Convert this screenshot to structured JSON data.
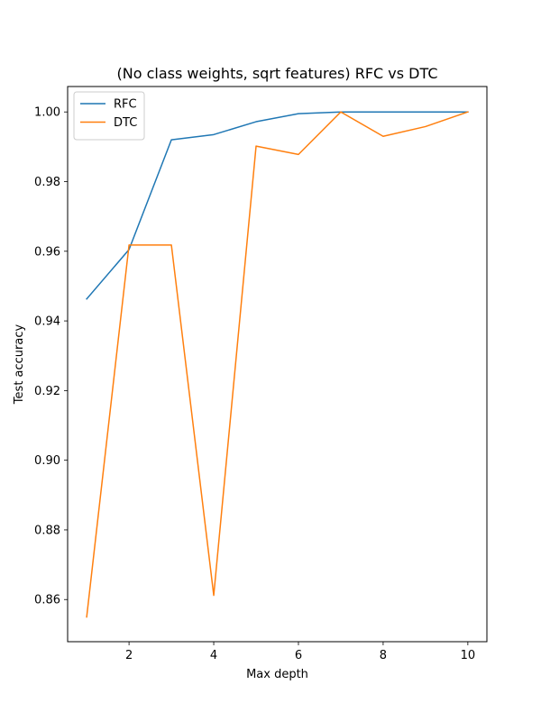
{
  "chart_data": {
    "type": "line",
    "title": "(No class weights, sqrt features) RFC vs DTC",
    "xlabel": "Max depth",
    "ylabel": "Test accuracy",
    "x": [
      1,
      2,
      3,
      4,
      5,
      6,
      7,
      8,
      9,
      10
    ],
    "xlim": [
      0.55,
      10.45
    ],
    "ylim": [
      0.8479,
      1.0073
    ],
    "xticks": [
      2,
      4,
      6,
      8,
      10
    ],
    "xtick_labels": [
      "2",
      "4",
      "6",
      "8",
      "10"
    ],
    "yticks": [
      0.86,
      0.88,
      0.9,
      0.92,
      0.94,
      0.96,
      0.98,
      1.0
    ],
    "ytick_labels": [
      "0.86",
      "0.88",
      "0.90",
      "0.92",
      "0.94",
      "0.96",
      "0.98",
      "1.00"
    ],
    "grid": false,
    "legend_position": "upper-left",
    "series": [
      {
        "name": "RFC",
        "color": "#1f77b4",
        "values": [
          0.9463,
          0.9605,
          0.992,
          0.9935,
          0.9972,
          0.9995,
          1.0,
          1.0,
          1.0,
          1.0
        ]
      },
      {
        "name": "DTC",
        "color": "#ff7f0e",
        "values": [
          0.855,
          0.9618,
          0.9618,
          0.8612,
          0.9902,
          0.9878,
          1.0,
          0.993,
          0.9958,
          1.0
        ]
      }
    ]
  }
}
